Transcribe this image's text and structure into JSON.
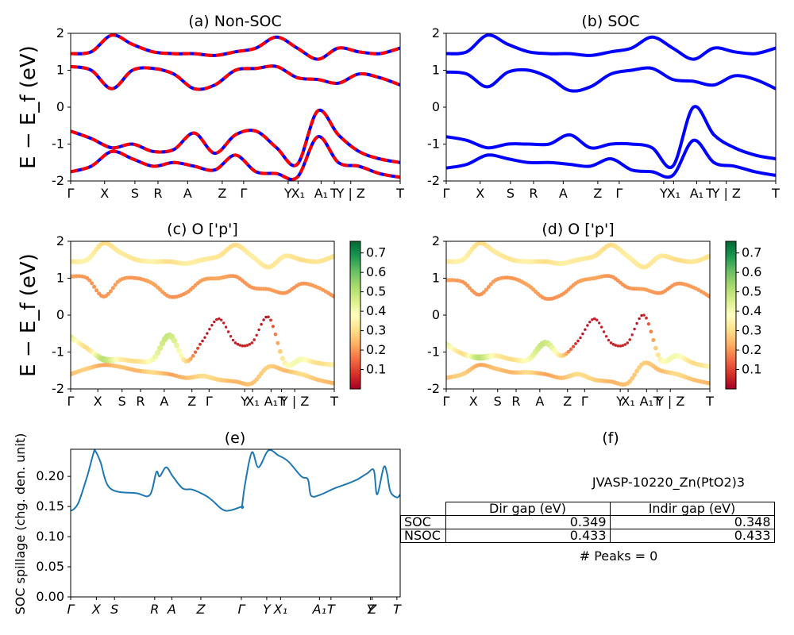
{
  "panels": {
    "a": {
      "title": "(a) Non-SOC"
    },
    "b": {
      "title": "(b) SOC"
    },
    "c": {
      "title": "(c)  O ['p']"
    },
    "d": {
      "title": "(d) O ['p']"
    },
    "e": {
      "title": "(e)"
    },
    "f": {
      "title": "(f)"
    }
  },
  "band_ylabel": "E − E_f (eV)",
  "spillage_ylabel": "SOC spillage (chg. den. unit)",
  "kpath_labels": [
    "Γ",
    "X",
    "S",
    "R",
    "A",
    "Z",
    "Γ",
    "Y",
    "X₁",
    "A₁",
    "T",
    "Y | Z",
    "T"
  ],
  "spillage_kpath_labels": [
    "Γ",
    "X",
    "S",
    "R",
    "A",
    "Z",
    "Γ",
    "Y",
    "X₁",
    "A₁",
    "T",
    "Y",
    "Z",
    "T"
  ],
  "colors": {
    "non_soc_up": "#0000ff",
    "non_soc_dn": "#ff0000",
    "soc": "#0000ff",
    "spillage": "#1f77b4"
  },
  "colorbar": {
    "cmap": "RdYlGn",
    "range": [
      0,
      0.76
    ],
    "ticks": [
      "0.1",
      "0.2",
      "0.3",
      "0.4",
      "0.5",
      "0.6",
      "0.7"
    ]
  },
  "table": {
    "material": "JVASP-10220_Zn(PtO2)3",
    "columns": [
      "Dir gap (eV)",
      "Indir gap (eV)"
    ],
    "rows": [
      {
        "label": "SOC",
        "dir": "0.349",
        "indir": "0.348"
      },
      {
        "label": "NSOC",
        "dir": "0.433",
        "indir": "0.433"
      }
    ],
    "peaks": "# Peaks = 0"
  },
  "chart_data": [
    {
      "type": "line",
      "title": "(a) Non-SOC",
      "ylabel": "E − E_f (eV)",
      "ylim": [
        -2,
        2
      ],
      "yticks": [
        -2,
        -1,
        0,
        1,
        2
      ],
      "x_ticks": [
        "Γ",
        "X",
        "S",
        "R",
        "A",
        "Z",
        "Γ",
        "Y",
        "X₁",
        "A₁",
        "T",
        "Y | Z",
        "T"
      ],
      "series": [
        {
          "values": [
            1.45,
            1.5,
            1.95,
            1.7,
            1.5,
            1.45,
            1.45,
            1.4,
            1.5,
            1.6,
            1.9,
            1.6,
            1.3,
            1.6,
            1.5,
            1.45,
            1.6
          ]
        },
        {
          "values": [
            1.1,
            1.0,
            0.5,
            1.0,
            1.05,
            0.9,
            0.5,
            0.6,
            1.0,
            1.05,
            1.1,
            0.8,
            0.75,
            0.65,
            0.9,
            0.8,
            0.6
          ]
        },
        {
          "values": [
            -0.65,
            -0.85,
            -1.1,
            -1.0,
            -1.2,
            -1.15,
            -0.7,
            -1.25,
            -0.75,
            -0.65,
            -1.1,
            -1.55,
            -0.1,
            -0.75,
            -1.2,
            -1.4,
            -1.5
          ]
        },
        {
          "values": [
            -1.75,
            -1.6,
            -1.2,
            -1.4,
            -1.6,
            -1.5,
            -1.6,
            -1.7,
            -1.3,
            -1.75,
            -1.8,
            -1.9,
            -0.8,
            -1.5,
            -1.6,
            -1.8,
            -1.9
          ]
        }
      ]
    },
    {
      "type": "line",
      "title": "(b) SOC",
      "ylim": [
        -2,
        2
      ],
      "yticks": [
        -2,
        -1,
        0,
        1,
        2
      ],
      "x_ticks": [
        "Γ",
        "X",
        "S",
        "R",
        "A",
        "Z",
        "Γ",
        "Y",
        "X₁",
        "A₁",
        "T",
        "Y | Z",
        "T"
      ],
      "series": [
        {
          "values": [
            1.45,
            1.5,
            1.95,
            1.7,
            1.5,
            1.45,
            1.45,
            1.4,
            1.5,
            1.6,
            1.9,
            1.6,
            1.3,
            1.6,
            1.5,
            1.45,
            1.6
          ]
        },
        {
          "values": [
            0.95,
            0.9,
            0.55,
            0.95,
            1.0,
            0.8,
            0.45,
            0.55,
            0.9,
            1.0,
            1.05,
            0.75,
            0.7,
            0.6,
            0.85,
            0.75,
            0.5
          ]
        },
        {
          "values": [
            -0.8,
            -0.9,
            -1.1,
            -1.0,
            -1.0,
            -1.0,
            -0.75,
            -1.1,
            -1.0,
            -1.0,
            -1.1,
            -1.6,
            0.0,
            -0.75,
            -1.1,
            -1.3,
            -1.4
          ]
        },
        {
          "values": [
            -1.65,
            -1.55,
            -1.3,
            -1.4,
            -1.5,
            -1.5,
            -1.55,
            -1.6,
            -1.4,
            -1.7,
            -1.75,
            -1.85,
            -0.9,
            -1.5,
            -1.6,
            -1.75,
            -1.85
          ]
        }
      ]
    },
    {
      "type": "scatter",
      "title": "(c)  O ['p']",
      "ylim": [
        -2,
        2
      ],
      "yticks": [
        -2,
        -1,
        0,
        1,
        2
      ],
      "x_ticks": [
        "Γ",
        "X",
        "S",
        "R",
        "A",
        "Z",
        "Γ",
        "Y",
        "X₁",
        "A₁",
        "T",
        "Y | Z",
        "T"
      ],
      "colorbar_ticks": [
        0.1,
        0.2,
        0.3,
        0.4,
        0.5,
        0.6,
        0.7
      ],
      "series": [
        {
          "values": [
            1.45,
            1.5,
            1.95,
            1.7,
            1.5,
            1.45,
            1.45,
            1.4,
            1.5,
            1.6,
            1.9,
            1.6,
            1.3,
            1.6,
            1.5,
            1.45,
            1.6
          ],
          "weights": [
            0.32,
            0.35,
            0.3,
            0.33,
            0.32,
            0.35,
            0.3,
            0.34,
            0.33,
            0.32,
            0.3,
            0.34,
            0.32,
            0.33,
            0.3,
            0.32,
            0.31
          ]
        },
        {
          "values": [
            1.05,
            1.0,
            0.5,
            0.95,
            1.0,
            0.85,
            0.5,
            0.6,
            0.95,
            1.0,
            1.05,
            0.75,
            0.7,
            0.6,
            0.85,
            0.75,
            0.5
          ],
          "weights": [
            0.22,
            0.2,
            0.2,
            0.21,
            0.2,
            0.22,
            0.2,
            0.2,
            0.21,
            0.22,
            0.2,
            0.2,
            0.21,
            0.2,
            0.2,
            0.21,
            0.2
          ]
        },
        {
          "values": [
            -0.6,
            -0.9,
            -1.2,
            -1.2,
            -1.25,
            -1.2,
            -0.55,
            -1.25,
            -0.7,
            -0.1,
            -0.75,
            -0.75,
            -0.05,
            -1.3,
            -1.2,
            -1.3,
            -1.35
          ],
          "weights": [
            0.45,
            0.3,
            0.5,
            0.35,
            0.3,
            0.4,
            0.48,
            0.3,
            0.05,
            0.05,
            0.05,
            0.06,
            0.05,
            0.35,
            0.4,
            0.3,
            0.35
          ]
        },
        {
          "values": [
            -1.6,
            -1.45,
            -1.35,
            -1.4,
            -1.5,
            -1.55,
            -1.6,
            -1.7,
            -1.65,
            -1.75,
            -1.8,
            -1.85,
            -1.4,
            -1.5,
            -1.6,
            -1.75,
            -1.85
          ],
          "weights": [
            0.25,
            0.28,
            0.22,
            0.26,
            0.24,
            0.3,
            0.22,
            0.25,
            0.3,
            0.28,
            0.24,
            0.26,
            0.28,
            0.25,
            0.3,
            0.26,
            0.24
          ]
        }
      ]
    },
    {
      "type": "scatter",
      "title": "(d) O ['p']",
      "ylim": [
        -2,
        2
      ],
      "yticks": [
        -2,
        -1,
        0,
        1,
        2
      ],
      "x_ticks": [
        "Γ",
        "X",
        "S",
        "R",
        "A",
        "Z",
        "Γ",
        "Y",
        "X₁",
        "A₁",
        "T",
        "Y | Z",
        "T"
      ],
      "colorbar_ticks": [
        0.1,
        0.2,
        0.3,
        0.4,
        0.5,
        0.6,
        0.7
      ],
      "series": [
        {
          "values": [
            1.45,
            1.5,
            1.95,
            1.7,
            1.5,
            1.45,
            1.45,
            1.4,
            1.5,
            1.6,
            1.9,
            1.6,
            1.3,
            1.6,
            1.5,
            1.45,
            1.6
          ],
          "weights": [
            0.32,
            0.35,
            0.3,
            0.33,
            0.32,
            0.35,
            0.3,
            0.34,
            0.33,
            0.32,
            0.3,
            0.34,
            0.32,
            0.33,
            0.3,
            0.32,
            0.31
          ]
        },
        {
          "values": [
            0.95,
            0.9,
            0.55,
            0.95,
            1.0,
            0.8,
            0.45,
            0.55,
            0.9,
            1.0,
            1.05,
            0.75,
            0.7,
            0.6,
            0.85,
            0.75,
            0.5
          ],
          "weights": [
            0.22,
            0.2,
            0.2,
            0.21,
            0.2,
            0.22,
            0.2,
            0.2,
            0.21,
            0.22,
            0.2,
            0.2,
            0.21,
            0.2,
            0.2,
            0.21,
            0.2
          ]
        },
        {
          "values": [
            -0.8,
            -1.05,
            -1.15,
            -1.1,
            -1.2,
            -1.2,
            -0.75,
            -1.1,
            -0.7,
            -0.1,
            -0.75,
            -0.75,
            0.0,
            -1.2,
            -1.1,
            -1.3,
            -1.4
          ],
          "weights": [
            0.45,
            0.3,
            0.5,
            0.35,
            0.3,
            0.4,
            0.48,
            0.3,
            0.05,
            0.05,
            0.05,
            0.06,
            0.05,
            0.35,
            0.4,
            0.3,
            0.35
          ]
        },
        {
          "values": [
            -1.7,
            -1.6,
            -1.35,
            -1.45,
            -1.55,
            -1.55,
            -1.6,
            -1.7,
            -1.6,
            -1.75,
            -1.8,
            -1.85,
            -1.3,
            -1.5,
            -1.6,
            -1.75,
            -1.85
          ],
          "weights": [
            0.25,
            0.28,
            0.22,
            0.26,
            0.24,
            0.3,
            0.22,
            0.25,
            0.3,
            0.28,
            0.24,
            0.26,
            0.28,
            0.25,
            0.3,
            0.26,
            0.24
          ]
        }
      ]
    },
    {
      "type": "line",
      "title": "(e)",
      "ylabel": "SOC spillage (chg. den. unit)",
      "ylim": [
        0.0,
        0.245
      ],
      "yticks": [
        "0.00",
        "0.05",
        "0.10",
        "0.15",
        "0.20"
      ],
      "x_ticks": [
        "Γ",
        "X",
        "S",
        "R",
        "A",
        "Z",
        "Γ",
        "Y",
        "X₁",
        "A₁",
        "T",
        "Y",
        "Z",
        "T"
      ],
      "x": [
        0,
        0.01,
        0.025,
        0.05,
        0.07,
        0.075,
        0.09,
        0.12,
        0.2,
        0.24,
        0.26,
        0.27,
        0.29,
        0.31,
        0.34,
        0.37,
        0.41,
        0.43,
        0.47,
        0.52,
        0.52,
        0.53,
        0.55,
        0.57,
        0.6,
        0.63,
        0.66,
        0.7,
        0.72,
        0.73,
        0.76,
        0.8,
        0.84,
        0.87,
        0.9,
        0.92,
        0.93,
        0.95,
        0.96,
        0.97,
        0.99,
        1.0
      ],
      "values": [
        0.143,
        0.146,
        0.158,
        0.2,
        0.24,
        0.242,
        0.225,
        0.18,
        0.172,
        0.169,
        0.207,
        0.2,
        0.215,
        0.2,
        0.18,
        0.178,
        0.168,
        0.16,
        0.143,
        0.15,
        0.15,
        0.19,
        0.24,
        0.215,
        0.243,
        0.235,
        0.225,
        0.2,
        0.195,
        0.168,
        0.17,
        0.18,
        0.188,
        0.195,
        0.205,
        0.21,
        0.17,
        0.215,
        0.205,
        0.175,
        0.165,
        0.17
      ]
    }
  ]
}
